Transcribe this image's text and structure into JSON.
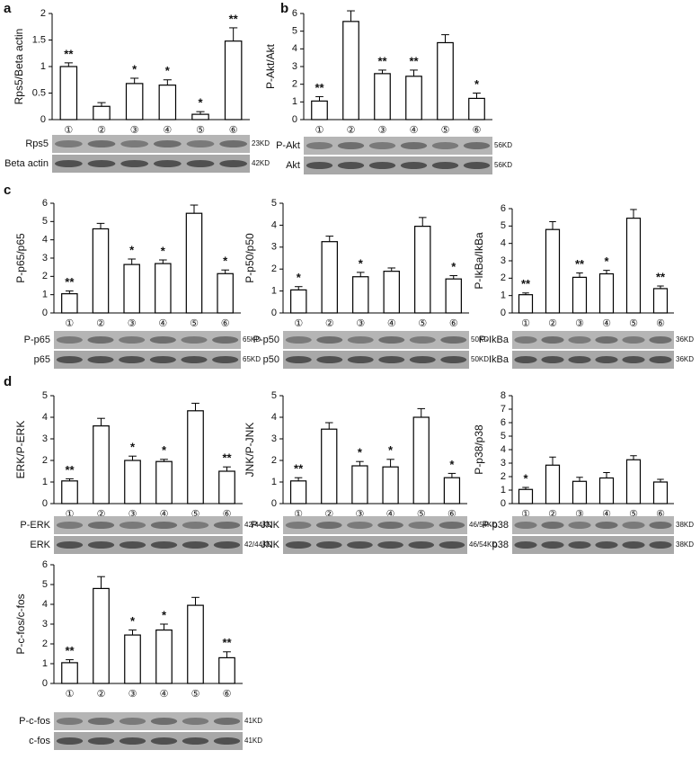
{
  "chart_data": [
    {
      "type": "bar",
      "panel": "a",
      "ylabel": "Rps5/Beta actin",
      "categories": [
        "①",
        "②",
        "③",
        "④",
        "⑤",
        "⑥"
      ],
      "values": [
        1.0,
        0.25,
        0.68,
        0.65,
        0.1,
        1.48
      ],
      "errors": [
        0.07,
        0.07,
        0.1,
        0.1,
        0.05,
        0.25
      ],
      "stars": [
        "**",
        null,
        "*",
        "*",
        "*",
        "**"
      ],
      "ylim": [
        0,
        2
      ],
      "yticks": [
        0,
        0.5,
        1,
        1.5,
        2
      ],
      "blots": [
        {
          "label": "Rps5",
          "size": "23KD"
        },
        {
          "label": "Beta actin",
          "size": "42KD"
        }
      ]
    },
    {
      "type": "bar",
      "panel": "b",
      "ylabel": "P-Akt/Akt",
      "categories": [
        "①",
        "②",
        "③",
        "④",
        "⑤",
        "⑥"
      ],
      "values": [
        1.05,
        5.55,
        2.6,
        2.45,
        4.35,
        1.2
      ],
      "errors": [
        0.25,
        0.6,
        0.2,
        0.35,
        0.45,
        0.3
      ],
      "stars": [
        "**",
        null,
        "**",
        "**",
        null,
        "*"
      ],
      "ylim": [
        0,
        6
      ],
      "yticks": [
        0,
        1,
        2,
        3,
        4,
        5,
        6
      ],
      "blots": [
        {
          "label": "P-Akt",
          "size": "56KD"
        },
        {
          "label": "Akt",
          "size": "56KD"
        }
      ]
    },
    {
      "type": "bar",
      "panel": "c",
      "ylabel": "P-p65/p65",
      "categories": [
        "①",
        "②",
        "③",
        "④",
        "⑤",
        "⑥"
      ],
      "values": [
        1.05,
        4.6,
        2.65,
        2.7,
        5.45,
        2.15
      ],
      "errors": [
        0.15,
        0.3,
        0.3,
        0.2,
        0.45,
        0.2
      ],
      "stars": [
        "**",
        null,
        "*",
        "*",
        null,
        "*"
      ],
      "ylim": [
        0,
        6
      ],
      "yticks": [
        0,
        1,
        2,
        3,
        4,
        5,
        6
      ],
      "blots": [
        {
          "label": "P-p65",
          "size": "65KD"
        },
        {
          "label": "p65",
          "size": "65KD"
        }
      ]
    },
    {
      "type": "bar",
      "ylabel": "P-p50/p50",
      "categories": [
        "①",
        "②",
        "③",
        "④",
        "⑤",
        "⑥"
      ],
      "values": [
        1.05,
        3.25,
        1.65,
        1.9,
        3.95,
        1.55
      ],
      "errors": [
        0.15,
        0.25,
        0.2,
        0.15,
        0.4,
        0.15
      ],
      "stars": [
        "*",
        null,
        "*",
        null,
        null,
        "*"
      ],
      "ylim": [
        0,
        5
      ],
      "yticks": [
        0,
        1,
        2,
        3,
        4,
        5
      ],
      "blots": [
        {
          "label": "P-p50",
          "size": "50KD"
        },
        {
          "label": "p50",
          "size": "50KD"
        }
      ]
    },
    {
      "type": "bar",
      "ylabel": "P-IkBa/IkBa",
      "categories": [
        "①",
        "②",
        "③",
        "④",
        "⑤",
        "⑥"
      ],
      "values": [
        1.05,
        4.8,
        2.05,
        2.25,
        5.45,
        1.4
      ],
      "errors": [
        0.1,
        0.45,
        0.25,
        0.2,
        0.5,
        0.15
      ],
      "stars": [
        "**",
        null,
        "**",
        "*",
        null,
        "**"
      ],
      "ylim": [
        0,
        6
      ],
      "yticks": [
        0,
        1,
        2,
        3,
        4,
        5,
        6
      ],
      "blots": [
        {
          "label": "P-IkBa",
          "size": "36KD"
        },
        {
          "label": "IkBa",
          "size": "36KD"
        }
      ]
    },
    {
      "type": "bar",
      "panel": "d",
      "ylabel": "ERK/P-ERK",
      "categories": [
        "①",
        "②",
        "③",
        "④",
        "⑤",
        "⑥"
      ],
      "values": [
        1.05,
        3.6,
        2.0,
        1.95,
        4.3,
        1.5
      ],
      "errors": [
        0.1,
        0.35,
        0.2,
        0.1,
        0.35,
        0.2
      ],
      "stars": [
        "**",
        null,
        "*",
        "*",
        null,
        "**"
      ],
      "ylim": [
        0,
        5
      ],
      "yticks": [
        0,
        1,
        2,
        3,
        4,
        5
      ],
      "blots": [
        {
          "label": "P-ERK",
          "size": "42/44KD"
        },
        {
          "label": "ERK",
          "size": "42/44KD"
        }
      ]
    },
    {
      "type": "bar",
      "ylabel": "JNK/P-JNK",
      "categories": [
        "①",
        "②",
        "③",
        "④",
        "⑤",
        "⑥"
      ],
      "values": [
        1.05,
        3.45,
        1.75,
        1.7,
        4.0,
        1.2
      ],
      "errors": [
        0.15,
        0.3,
        0.2,
        0.35,
        0.4,
        0.2
      ],
      "stars": [
        "**",
        null,
        "*",
        "*",
        null,
        "*"
      ],
      "ylim": [
        0,
        5
      ],
      "yticks": [
        0,
        1,
        2,
        3,
        4,
        5
      ],
      "blots": [
        {
          "label": "P-JNK",
          "size": "46/54KD"
        },
        {
          "label": "JNK",
          "size": "46/54KD"
        }
      ]
    },
    {
      "type": "bar",
      "ylabel": "P-p38/p38",
      "categories": [
        "①",
        "②",
        "③",
        "④",
        "⑤",
        "⑥"
      ],
      "values": [
        1.05,
        2.85,
        1.65,
        1.9,
        3.25,
        1.6
      ],
      "errors": [
        0.15,
        0.6,
        0.3,
        0.4,
        0.3,
        0.2
      ],
      "stars": [
        "*",
        null,
        null,
        null,
        null,
        null
      ],
      "ylim": [
        0,
        8
      ],
      "yticks": [
        0,
        1,
        2,
        3,
        4,
        5,
        6,
        7,
        8
      ],
      "blots": [
        {
          "label": "P-p38",
          "size": "38KD"
        },
        {
          "label": "p38",
          "size": "38KD"
        }
      ]
    },
    {
      "type": "bar",
      "ylabel": "P-c-fos/c-fos",
      "categories": [
        "①",
        "②",
        "③",
        "④",
        "⑤",
        "⑥"
      ],
      "values": [
        1.05,
        4.8,
        2.45,
        2.7,
        3.95,
        1.3
      ],
      "errors": [
        0.15,
        0.6,
        0.25,
        0.3,
        0.4,
        0.3
      ],
      "stars": [
        "**",
        null,
        "*",
        "*",
        null,
        "**"
      ],
      "ylim": [
        0,
        6
      ],
      "yticks": [
        0,
        1,
        2,
        3,
        4,
        5,
        6
      ],
      "blots": [
        {
          "label": "P-c-fos",
          "size": "41KD"
        },
        {
          "label": "c-fos",
          "size": "41KD"
        }
      ]
    }
  ]
}
